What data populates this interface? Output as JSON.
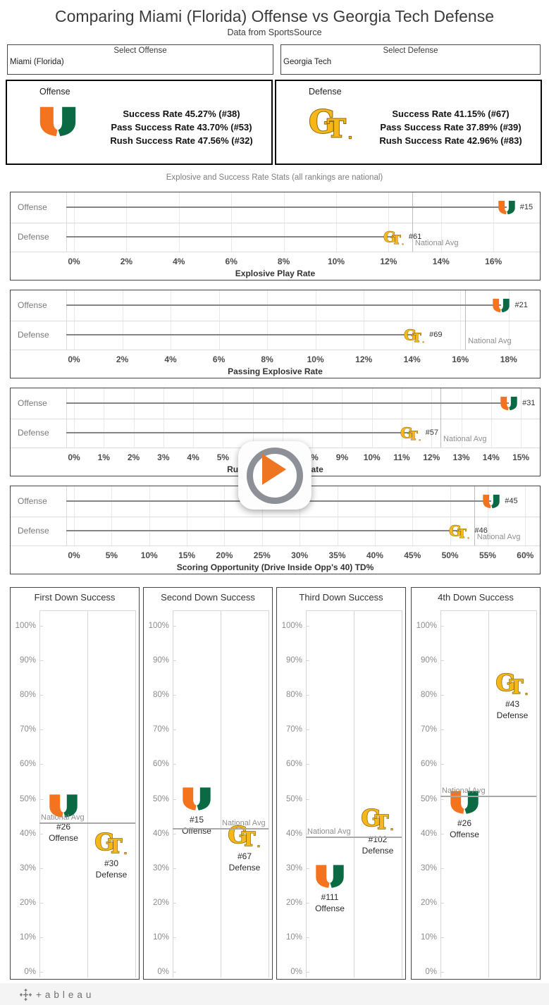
{
  "title": "Comparing Miami (Florida) Offense vs Georgia Tech Defense",
  "subtitle": "Data from SportsSource",
  "selectors": {
    "offense": {
      "label": "Select Offense",
      "value": "Miami (Florida)"
    },
    "defense": {
      "label": "Select Defense",
      "value": "Georgia Tech"
    }
  },
  "cards": {
    "offense": {
      "heading": "Offense",
      "team": "Miami (Florida)",
      "logo_icon": "miami-u-icon",
      "lines": [
        "Success Rate 45.27% (#38)",
        "Pass Success Rate 43.70% (#53)",
        "Rush Success Rate 47.56% (#32)"
      ]
    },
    "defense": {
      "heading": "Defense",
      "team": "Georgia Tech",
      "logo_icon": "georgia-tech-icon",
      "lines": [
        "Success Rate 41.15% (#67)",
        "Pass Success Rate 37.89% (#39)",
        "Rush Success Rate 42.96% (#83)"
      ]
    }
  },
  "section_caption": "Explosive and Success Rate Stats (all rankings are national)",
  "row_labels": {
    "offense": "Offense",
    "defense": "Defense"
  },
  "national_avg_label": "National Avg",
  "chart_data": {
    "lollipop_charts": [
      {
        "type": "scatter",
        "title": "Explosive Play Rate",
        "unit": "%",
        "xlim": [
          0,
          17.5
        ],
        "tick_step": 2,
        "tick_max": 16,
        "rows": [
          {
            "label": "Offense",
            "team": "Miami (Florida)",
            "value": 16.5,
            "rank": "#15"
          },
          {
            "label": "Defense",
            "team": "Georgia Tech",
            "value": 12.2,
            "rank": "#61"
          }
        ],
        "national_avg": 12.9
      },
      {
        "type": "scatter",
        "title": "Passing Explosive Rate",
        "unit": "%",
        "xlim": [
          0,
          19
        ],
        "tick_step": 2,
        "tick_max": 18,
        "rows": [
          {
            "label": "Offense",
            "team": "Miami (Florida)",
            "value": 17.7,
            "rank": "#21"
          },
          {
            "label": "Defense",
            "team": "Georgia Tech",
            "value": 14.1,
            "rank": "#69"
          }
        ],
        "national_avg": 16.2
      },
      {
        "type": "scatter",
        "title": "Rushing Explosive Rate",
        "unit": "%",
        "xlim": [
          0,
          15.4
        ],
        "tick_step": 1,
        "tick_max": 15,
        "rows": [
          {
            "label": "Offense",
            "team": "Miami (Florida)",
            "value": 14.6,
            "rank": "#31"
          },
          {
            "label": "Defense",
            "team": "Georgia Tech",
            "value": 11.3,
            "rank": "#57"
          }
        ],
        "national_avg": 12.3
      },
      {
        "type": "scatter",
        "title": "Scoring Opportunity (Drive Inside Opp's 40) TD%",
        "unit": "%",
        "xlim": [
          0,
          61
        ],
        "tick_step": 5,
        "tick_max": 60,
        "rows": [
          {
            "label": "Offense",
            "team": "Miami (Florida)",
            "value": 55.5,
            "rank": "#45"
          },
          {
            "label": "Defense",
            "team": "Georgia Tech",
            "value": 51.3,
            "rank": "#46"
          }
        ],
        "national_avg": 53.2
      }
    ],
    "down_charts": [
      {
        "type": "scatter",
        "title": "First Down Success",
        "ylim": [
          0,
          100
        ],
        "tick_step": 10,
        "unit": "%",
        "offense": {
          "team": "Miami (Florida)",
          "value": 48,
          "rank": "#26",
          "label": "Offense"
        },
        "defense": {
          "team": "Georgia Tech",
          "value": 37.5,
          "rank": "#30",
          "label": "Defense"
        },
        "national_avg": 43
      },
      {
        "type": "scatter",
        "title": "Second Down Success",
        "ylim": [
          0,
          100
        ],
        "tick_step": 10,
        "unit": "%",
        "offense": {
          "team": "Miami (Florida)",
          "value": 50,
          "rank": "#15",
          "label": "Offense"
        },
        "defense": {
          "team": "Georgia Tech",
          "value": 39.5,
          "rank": "#67",
          "label": "Defense"
        },
        "national_avg": 41.3
      },
      {
        "type": "scatter",
        "title": "Third Down Success",
        "ylim": [
          0,
          100
        ],
        "tick_step": 10,
        "unit": "%",
        "offense": {
          "team": "Miami (Florida)",
          "value": 27.5,
          "rank": "#111",
          "label": "Offense"
        },
        "defense": {
          "team": "Georgia Tech",
          "value": 44.5,
          "rank": "#102",
          "label": "Defense"
        },
        "national_avg": 38.8
      },
      {
        "type": "scatter",
        "title": "4th Down Success",
        "ylim": [
          0,
          100
        ],
        "tick_step": 10,
        "unit": "%",
        "offense": {
          "team": "Miami (Florida)",
          "value": 49,
          "rank": "#26",
          "label": "Offense"
        },
        "defense": {
          "team": "Georgia Tech",
          "value": 83.5,
          "rank": "#43",
          "label": "Defense"
        },
        "national_avg": 50.8
      }
    ]
  },
  "colors": {
    "miami_orange": "#f4731f",
    "miami_green": "#0a6a43",
    "gt_gold": "#f7b718",
    "gt_outline": "#8a6a10",
    "lollipop_line": "#858585",
    "national_avg_line": "#a8a8a8",
    "play_triangle": "#ee7623",
    "play_ring": "#8d9096"
  },
  "footer": {
    "brand": "+ableau"
  }
}
